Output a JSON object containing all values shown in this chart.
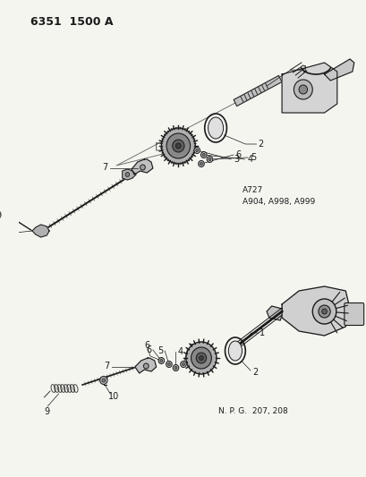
{
  "title": "6351  1500 A",
  "background_color": "#f5f5f0",
  "text_color": "#1a1a1a",
  "diagram1_label": "A727\nA904, A998, A999",
  "diagram2_label": "N. P. G.  207, 208",
  "figsize": [
    4.1,
    5.33
  ],
  "dpi": 100
}
